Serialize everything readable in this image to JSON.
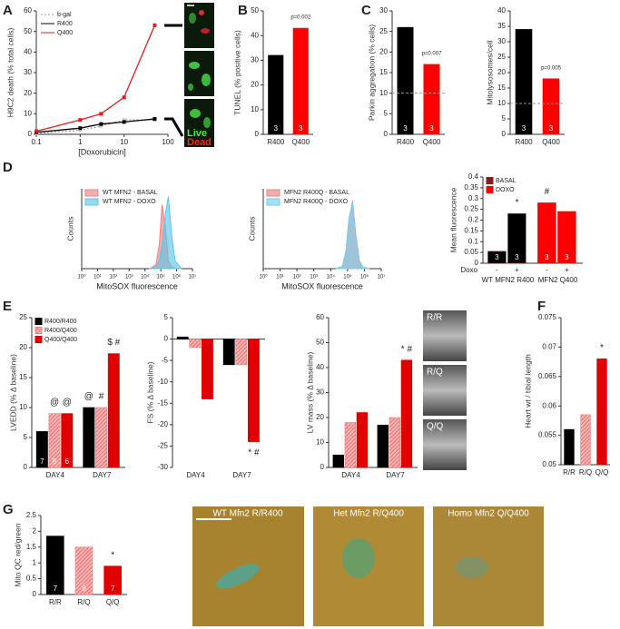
{
  "panel_letters": [
    "A",
    "B",
    "C",
    "D",
    "E",
    "F",
    "G"
  ],
  "images": {
    "A": [
      "Live",
      "Dead"
    ],
    "E": [
      "R/R",
      "R/Q",
      "Q/Q"
    ],
    "G": [
      "WT Mfn2 R/R400",
      "Het Mfn2 R/Q400",
      "Homo Mfn2 Q/Q400"
    ]
  },
  "chart_data": [
    {
      "type": "line",
      "x_label": "[Doxorubicin]",
      "y_label": "H9C2 death (% total cells)",
      "x": [
        0.1,
        1,
        3,
        10,
        50
      ],
      "log_x": true,
      "xlim": [
        0.1,
        100
      ],
      "xticks": [
        0.1,
        1,
        10,
        100
      ],
      "ylim": [
        0,
        60
      ],
      "yticks": [
        0,
        10,
        20,
        30,
        40,
        50,
        60
      ],
      "legend": "upper left",
      "series": [
        {
          "name": "b-gal",
          "color": "#999999",
          "dashed": true,
          "values": [
            0.5,
            2,
            4,
            7,
            7
          ]
        },
        {
          "name": "R400",
          "color": "#000000",
          "values": [
            1,
            3,
            5,
            6,
            7.5
          ]
        },
        {
          "name": "Q400",
          "color": "#e41a1c",
          "values": [
            1.5,
            7,
            10,
            18,
            53
          ]
        }
      ]
    },
    {
      "type": "bar",
      "y_label": "TUNEL (% positive cells)",
      "categories": [
        "R400",
        "Q400"
      ],
      "values": [
        32,
        43
      ],
      "colors": [
        "#000000",
        "#ff0000"
      ],
      "ylim": [
        0,
        50
      ],
      "yticks": [
        0,
        10,
        20,
        30,
        40,
        50
      ],
      "n_labels": [
        "3",
        "3"
      ],
      "annotations": [
        {
          "text": "p=0.002",
          "category": 1
        }
      ]
    },
    {
      "type": "bar",
      "y_label": "Parkin aggregation (% cells)",
      "categories": [
        "R400",
        "Q400"
      ],
      "values": [
        26,
        17
      ],
      "colors": [
        "#000000",
        "#ff0000"
      ],
      "ylim": [
        0,
        30
      ],
      "yticks": [
        0,
        5,
        10,
        15,
        20,
        25,
        30
      ],
      "ref_line": 10,
      "n_labels": [
        "3",
        "3"
      ],
      "annotations": [
        {
          "text": "p=0.007",
          "category": 1
        }
      ]
    },
    {
      "type": "bar",
      "y_label": "Mitolysosomes/cell",
      "categories": [
        "R400",
        "Q400"
      ],
      "values": [
        34,
        18
      ],
      "colors": [
        "#000000",
        "#ff0000"
      ],
      "ylim": [
        0,
        40
      ],
      "yticks": [
        0,
        5,
        10,
        15,
        20,
        25,
        30,
        35,
        40
      ],
      "ref_line": 10,
      "n_labels": [
        "3",
        "3"
      ],
      "annotations": [
        {
          "text": "p=0.005",
          "category": 1
        }
      ]
    },
    {
      "type": "area",
      "y_label": "Counts",
      "x_label": "MitoSOX fluorescence",
      "log_x": true,
      "xlim": [
        1,
        10000000
      ],
      "xticks": [
        {
          "value": 1,
          "label": "10⁰"
        },
        {
          "value": 10,
          "label": "10¹"
        },
        {
          "value": 100,
          "label": "10²"
        },
        {
          "value": 1000,
          "label": "10³"
        },
        {
          "value": 10000,
          "label": "10⁴"
        },
        {
          "value": 100000,
          "label": "10⁵"
        },
        {
          "value": 1000000,
          "label": "10⁶"
        },
        {
          "value": 10000000,
          "label": "10⁷"
        }
      ],
      "ylim": [
        0,
        100
      ],
      "legend": "upper left",
      "x": [
        20000,
        50000,
        80000,
        120000,
        200000,
        300000,
        500000,
        800000,
        2000000
      ],
      "series": [
        {
          "name": "WT MFN2 - BASAL",
          "color": "#f08080",
          "values": [
            0,
            5,
            30,
            80,
            50,
            10,
            2,
            0,
            0
          ]
        },
        {
          "name": "WT MFN2 - DOXO",
          "color": "#5bc8e8",
          "values": [
            0,
            2,
            10,
            30,
            70,
            90,
            40,
            10,
            0
          ]
        }
      ]
    },
    {
      "type": "area",
      "y_label": "Counts",
      "x_label": "MitoSOX fluorescence",
      "log_x": true,
      "xlim": [
        1,
        10000000
      ],
      "xticks": [
        {
          "value": 1,
          "label": "10⁰"
        },
        {
          "value": 10,
          "label": "10¹"
        },
        {
          "value": 100,
          "label": "10²"
        },
        {
          "value": 1000,
          "label": "10³"
        },
        {
          "value": 10000,
          "label": "10⁴"
        },
        {
          "value": 100000,
          "label": "10⁵"
        },
        {
          "value": 1000000,
          "label": "10⁶"
        },
        {
          "value": 10000000,
          "label": "10⁷"
        }
      ],
      "ylim": [
        0,
        100
      ],
      "legend": "upper left",
      "x": [
        20000,
        50000,
        80000,
        120000,
        200000,
        300000,
        500000,
        800000,
        2000000
      ],
      "series": [
        {
          "name": "MFN2 R400Q - BASAL",
          "color": "#f08080",
          "values": [
            0,
            3,
            20,
            60,
            85,
            45,
            10,
            2,
            0
          ]
        },
        {
          "name": "MFN2 R400Q - DOXO",
          "color": "#70d0f0",
          "values": [
            0,
            3,
            22,
            62,
            83,
            43,
            9,
            2,
            0
          ]
        }
      ]
    },
    {
      "type": "bar",
      "y_label": "Mean fluorescence",
      "categories": [
        "WT MFN2 R400",
        "MFN2 Q400"
      ],
      "group_colors": [
        "#000000",
        "#ff0000"
      ],
      "x_sublabel_title": "Doxo",
      "x_sublabels": [
        "-",
        "+"
      ],
      "ylim": [
        0,
        0.4
      ],
      "yticks": [
        0,
        0.05,
        0.1,
        0.15,
        0.2,
        0.25,
        0.3,
        0.35,
        0.4
      ],
      "legend": "upper left",
      "series": [
        {
          "name": "BASAL",
          "color": "#8b1a1a",
          "values": [
            0.055,
            0.28
          ],
          "n_labels": [
            "3",
            "3"
          ]
        },
        {
          "name": "DOXO",
          "color": "#ff0000",
          "values": [
            0.23,
            0.24
          ],
          "n_labels": [
            "3",
            "3"
          ]
        }
      ],
      "annotations": [
        {
          "text": "*",
          "category": 0,
          "series": 1
        },
        {
          "text": "#",
          "category": 1,
          "series": 0
        }
      ]
    },
    {
      "type": "bar",
      "y_label": "LVEDD (% Δ baseline)",
      "categories": [
        "DAY4",
        "DAY7"
      ],
      "ylim": [
        0,
        25
      ],
      "yticks": [
        0,
        5,
        10,
        15,
        20,
        25
      ],
      "legend": "upper left",
      "series": [
        {
          "name": "R400/R400",
          "color": "#000000",
          "values": [
            6,
            10
          ],
          "n_labels": [
            "7",
            null
          ]
        },
        {
          "name": "R400/Q400",
          "color": "#f47c7c",
          "hatch": true,
          "values": [
            9,
            10
          ],
          "n_labels": [
            "8",
            null
          ]
        },
        {
          "name": "Q400/Q400",
          "color": "#e00000",
          "values": [
            9,
            19
          ],
          "n_labels": [
            "6",
            null
          ]
        }
      ],
      "annotations": [
        {
          "text": "@",
          "category": 0,
          "series": 1
        },
        {
          "text": "@",
          "category": 0,
          "series": 2
        },
        {
          "text": "@",
          "category": 1,
          "series": 0
        },
        {
          "text": "#",
          "category": 1,
          "series": 1
        },
        {
          "text": "$ #",
          "category": 1,
          "series": 2
        }
      ]
    },
    {
      "type": "bar",
      "y_label": "FS (% Δ baseline)",
      "categories": [
        "DAY4",
        "DAY7"
      ],
      "ylim": [
        -30,
        5
      ],
      "yticks": [
        -30,
        -25,
        -20,
        -15,
        -10,
        -5,
        0,
        5
      ],
      "series": [
        {
          "color": "#000000",
          "values": [
            0.5,
            -6
          ]
        },
        {
          "color": "#f47c7c",
          "hatch": true,
          "values": [
            -2,
            -6
          ]
        },
        {
          "color": "#e00000",
          "values": [
            -14,
            -24
          ]
        }
      ],
      "annotations": [
        {
          "text": "* #",
          "category": 1,
          "series": 2
        }
      ]
    },
    {
      "type": "bar",
      "y_label": "LV mass (% Δ baseline)",
      "categories": [
        "DAY4",
        "DAY7"
      ],
      "ylim": [
        0,
        60
      ],
      "yticks": [
        0,
        10,
        20,
        30,
        40,
        50,
        60
      ],
      "series": [
        {
          "color": "#000000",
          "values": [
            5,
            17
          ]
        },
        {
          "color": "#f47c7c",
          "hatch": true,
          "values": [
            18,
            20
          ]
        },
        {
          "color": "#e00000",
          "values": [
            22,
            43
          ]
        }
      ],
      "annotations": [
        {
          "text": "* #",
          "category": 1,
          "series": 2
        }
      ]
    },
    {
      "type": "bar",
      "y_label": "Heart wt / tibial length",
      "categories": [
        "R/R",
        "R/Q",
        "Q/Q"
      ],
      "values": [
        0.056,
        0.0585,
        0.068
      ],
      "colors": [
        "#000000",
        "#f47c7c",
        "#e00000"
      ],
      "hatched": [
        false,
        true,
        false
      ],
      "ylim": [
        0.05,
        0.075
      ],
      "yticks": [
        0.05,
        0.055,
        0.06,
        0.065,
        0.07,
        0.075
      ],
      "annotations": [
        {
          "text": "*",
          "category": 2
        }
      ]
    },
    {
      "type": "bar",
      "y_label": "Mito QC red/green",
      "categories": [
        "R/R",
        "R/Q",
        "Q/Q"
      ],
      "values": [
        1.85,
        1.5,
        0.9
      ],
      "colors": [
        "#000000",
        "#f47c7c",
        "#e00000"
      ],
      "hatched": [
        false,
        true,
        false
      ],
      "ylim": [
        0,
        2.5
      ],
      "yticks": [
        0,
        0.5,
        1,
        1.5,
        2,
        2.5
      ],
      "n_labels": [
        "7",
        "8",
        "7"
      ],
      "annotations": [
        {
          "text": "*",
          "category": 2
        }
      ]
    }
  ]
}
